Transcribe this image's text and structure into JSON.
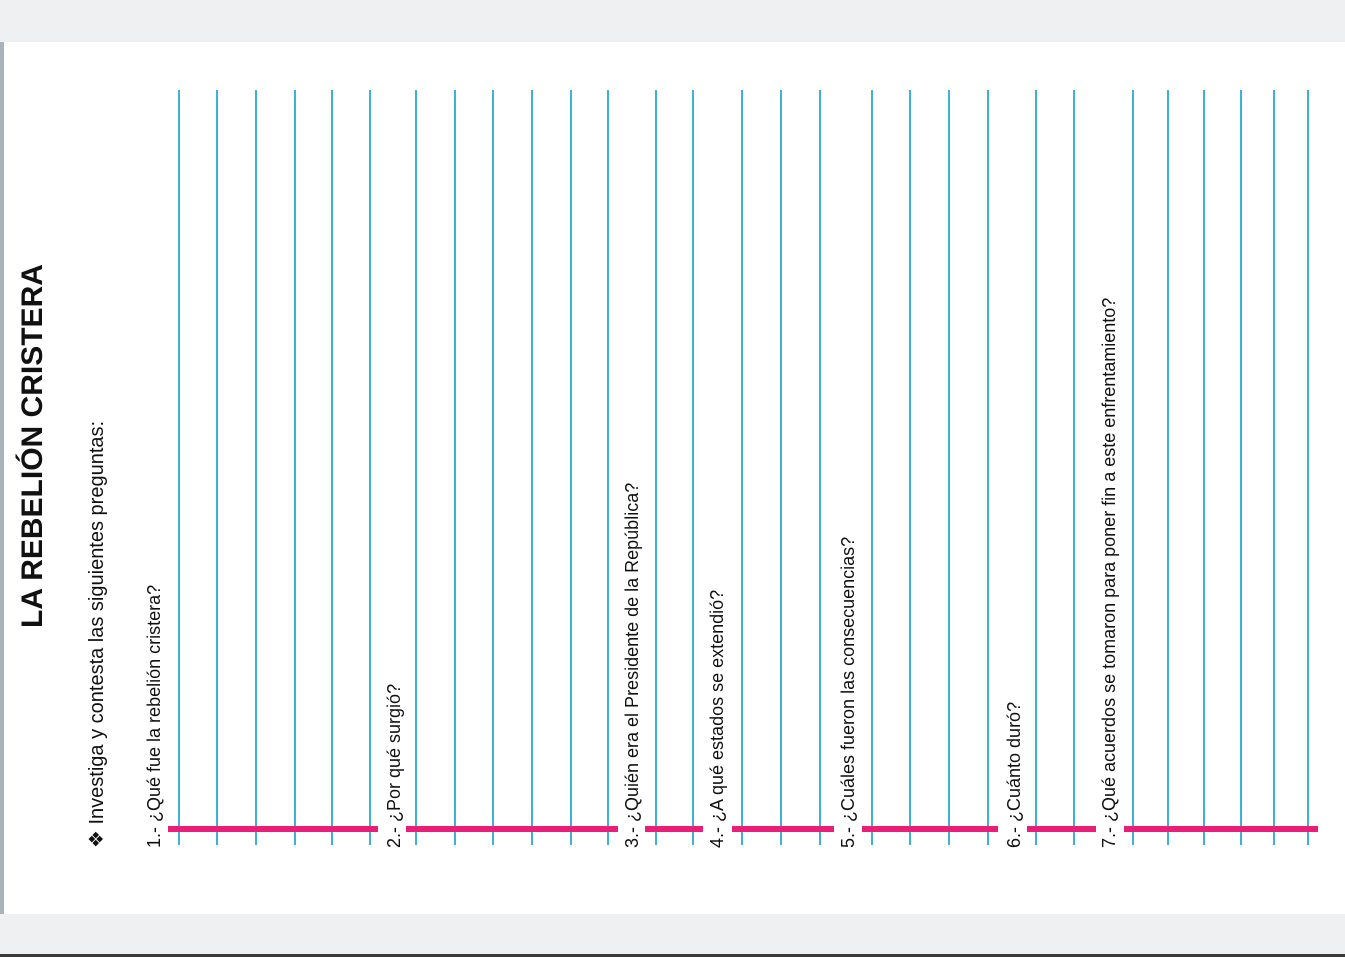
{
  "worksheet": {
    "title": "LA REBELIÓN CRISTERA",
    "instruction": "❖ Investiga y contesta las siguientes preguntas:",
    "questions": [
      {
        "label": "1.- ¿Qué fue la rebelión cristera?"
      },
      {
        "label": "2.- ¿Por qué surgió?"
      },
      {
        "label": "3.- ¿Quién era el Presidente de la República?"
      },
      {
        "label": "4.- ¿A qué estados se extendió?"
      },
      {
        "label": "5.- ¿Cuáles fueron las consecuencias?"
      },
      {
        "label": "6.- ¿Cuánto duró?"
      },
      {
        "label": "7.- ¿Qué acuerdos se tomaron para poner fin a este enfrentamiento?"
      }
    ]
  },
  "colors": {
    "answer_line": "#3fb0d6",
    "question_underline": "#ea1e78"
  }
}
